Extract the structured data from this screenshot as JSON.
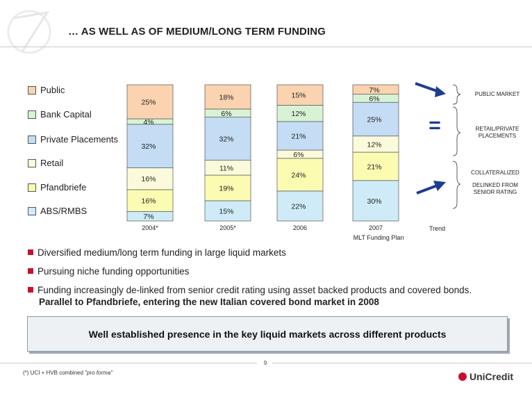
{
  "page": {
    "title": "… AS WELL AS OF MEDIUM/LONG TERM FUNDING",
    "footnote_prefix": "(*) UCI + HVB combined ",
    "footnote_em": "\"pro forma\"",
    "page_number": "9",
    "brand": "UniCredit"
  },
  "colors": {
    "accent": "#c8102e",
    "arrow": "#1e3d8f",
    "public": "#fbd3b0",
    "bank_capital": "#d8f2d5",
    "private_placements": "#c4dcf4",
    "retail": "#fbfbdb",
    "pfandbriefe": "#fbfbb2",
    "abs_rmbs": "#ceebf7"
  },
  "chart_data": {
    "type": "bar",
    "stacked": true,
    "normalized": true,
    "categories": [
      "2004*",
      "2005*",
      "2006",
      "2007"
    ],
    "category_sublabels": [
      "",
      "",
      "",
      "MLT Funding Plan"
    ],
    "legend_position": "left",
    "grid": false,
    "series": [
      {
        "name": "ABS/RMBS",
        "values": [
          7,
          15,
          22,
          30
        ],
        "labels": [
          "7%",
          "15%",
          "22%",
          "30%"
        ],
        "color": "#ceebf7"
      },
      {
        "name": "Pfandbriefe",
        "values": [
          16,
          19,
          24,
          21
        ],
        "labels": [
          "16%",
          "19%",
          "24%",
          "21%"
        ],
        "color": "#fbfbb2"
      },
      {
        "name": "Retail",
        "values": [
          16,
          11,
          6,
          12
        ],
        "labels": [
          "16%",
          "11%",
          "6%",
          "12%"
        ],
        "color": "#fbfbdb"
      },
      {
        "name": "Private Placements",
        "values": [
          32,
          32,
          21,
          25
        ],
        "labels": [
          "32%",
          "32%",
          "21%",
          "25%"
        ],
        "color": "#c4dcf4"
      },
      {
        "name": "Bank Capital",
        "values": [
          4,
          6,
          12,
          6
        ],
        "labels": [
          "4%",
          "6%",
          "12%",
          "6%"
        ],
        "color": "#d8f2d5"
      },
      {
        "name": "Public",
        "values": [
          25,
          18,
          15,
          7
        ],
        "labels": [
          "25%",
          "18%",
          "15%",
          "7%"
        ],
        "color": "#fbd3b0"
      }
    ],
    "legend_order": [
      "Public",
      "Bank Capital",
      "Private Placements",
      "Retail",
      "Pfandbriefe",
      "ABS/RMBS"
    ],
    "annotations": {
      "public_market": "PUBLIC MARKET",
      "retail_private": [
        "RETAIL/PRIVATE",
        "PLACEMENTS"
      ],
      "collateralized": "COLLATERALIZED",
      "delinked": [
        "DELINKED FROM",
        "SENIOR RATING"
      ],
      "equals_sign": "=",
      "trend": "Trend"
    }
  },
  "bullets": [
    {
      "text": "Diversified medium/long term funding in large liquid markets"
    },
    {
      "text": "Pursuing niche funding opportunities"
    },
    {
      "text": "Funding increasingly de-linked from senior credit rating using asset backed products and covered bonds.",
      "bold_line": "Parallel to Pfandbriefe, entering the new Italian covered bond market in 2008"
    }
  ],
  "callout": "Well established presence in the key liquid markets across different products"
}
